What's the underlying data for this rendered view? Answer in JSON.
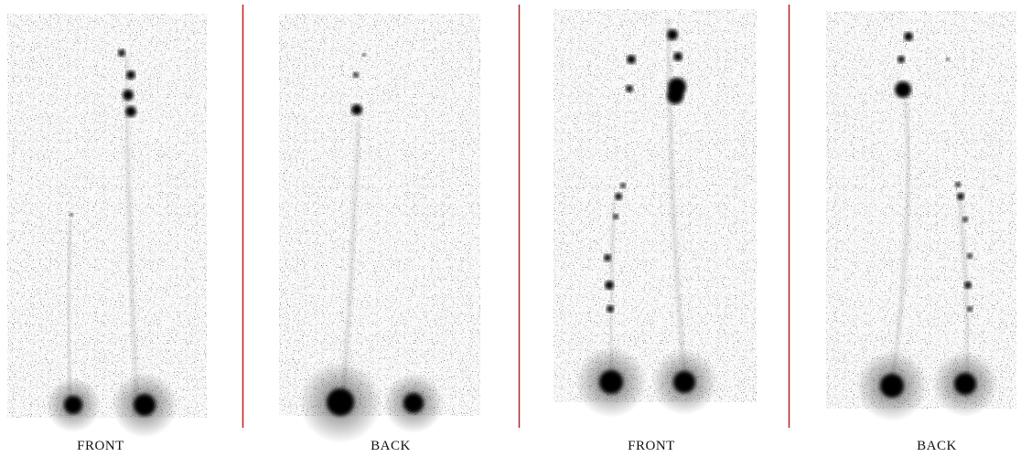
{
  "labels": [
    "FRONT",
    "BACK",
    "FRONT",
    "BACK"
  ]
}
